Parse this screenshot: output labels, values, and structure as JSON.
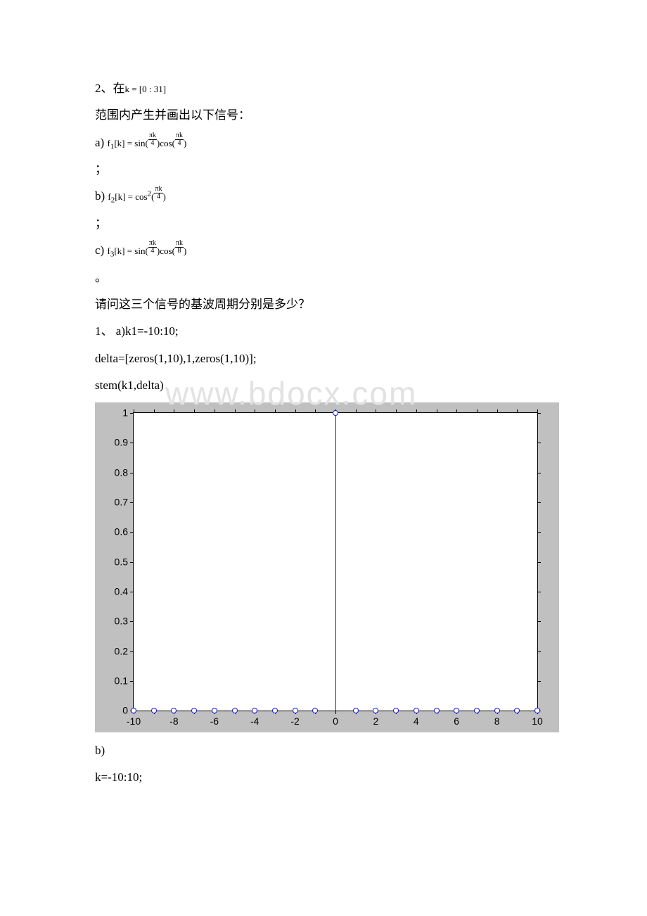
{
  "problem2": {
    "intro_pre": "2、在",
    "range": "k = [0 : 31]",
    "intro_post": "范围内产生并画出以下信号：",
    "items": {
      "a": {
        "prefix": "a)",
        "label": "f",
        "sub": "1",
        "body": "[k] = sin",
        "arg1_num": "πk",
        "arg1_den": "4",
        "mid": "cos",
        "arg2_num": "πk",
        "arg2_den": "4"
      },
      "b": {
        "prefix": "b)",
        "label": "f",
        "sub": "2",
        "body": "[k] = cos",
        "sup": "2",
        "arg1_num": "πk",
        "arg1_den": "4"
      },
      "c": {
        "prefix": "c)",
        "label": "f",
        "sub": "3",
        "body": "[k] = sin",
        "arg1_num": "πk",
        "arg1_den": "4",
        "mid": "cos",
        "arg2_num": "πk",
        "arg2_den": "8"
      }
    },
    "semicolon": "；",
    "period": "。",
    "question": "请问这三个信号的基波周期分别是多少？"
  },
  "solution": {
    "heading": "1、 a)k1=-10:10;",
    "code1": "delta=[zeros(1,10),1,zeros(1,10)];",
    "code2": "stem(k1,delta)",
    "after_chart_b": "b)",
    "after_chart_k": "k=-10:10;"
  },
  "watermark": "www.bdocx.com",
  "chart": {
    "type": "stem",
    "background_color": "#c0c0c0",
    "inner_bg": "#ffffff",
    "axis_color": "#000000",
    "stem_color": "#1717e5",
    "marker_border": "#1717e5",
    "marker_fill": "#ffffff",
    "marker_size": 8,
    "xlim": [
      -10,
      10
    ],
    "ylim": [
      0,
      1
    ],
    "x_ticks": [
      -10,
      -8,
      -6,
      -4,
      -2,
      0,
      2,
      4,
      6,
      8,
      10
    ],
    "y_ticks": [
      0,
      0.1,
      0.2,
      0.3,
      0.4,
      0.5,
      0.6,
      0.7,
      0.8,
      0.9,
      1
    ],
    "x": [
      -10,
      -9,
      -8,
      -7,
      -6,
      -5,
      -4,
      -3,
      -2,
      -1,
      0,
      1,
      2,
      3,
      4,
      5,
      6,
      7,
      8,
      9,
      10
    ],
    "y": [
      0,
      0,
      0,
      0,
      0,
      0,
      0,
      0,
      0,
      0,
      1,
      0,
      0,
      0,
      0,
      0,
      0,
      0,
      0,
      0,
      0
    ],
    "tick_fontsize": 14
  }
}
